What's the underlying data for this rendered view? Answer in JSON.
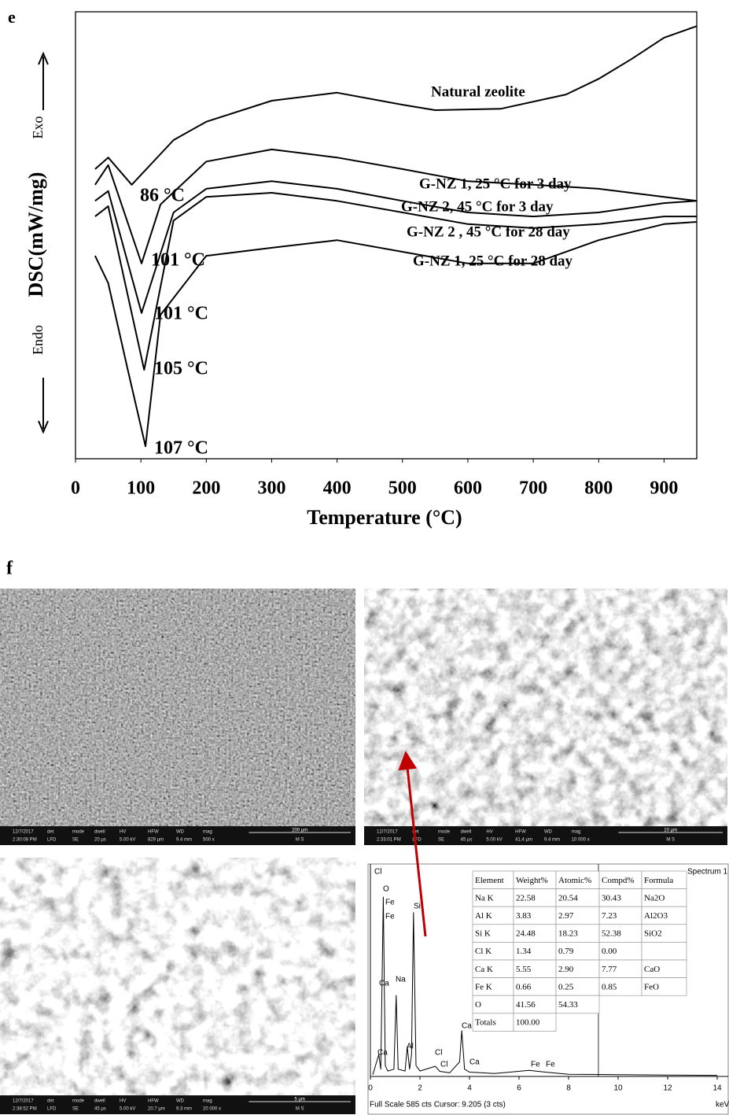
{
  "chart_data": [
    {
      "type": "line",
      "xlabel": "Temperature (°C)",
      "ylabel": "DSC(mW/mg)",
      "exo_label": "Exo",
      "endo_label": "Endo",
      "xlim": [
        0,
        950
      ],
      "ylim": [
        0,
        100
      ],
      "xticks": [
        0,
        100,
        200,
        300,
        400,
        500,
        600,
        700,
        800,
        900
      ],
      "grid": false,
      "series": [
        {
          "name": "Natural zeolite",
          "peak_label": "86 °C",
          "color": "#000000",
          "x": [
            30,
            50,
            86,
            150,
            200,
            300,
            400,
            500,
            550,
            650,
            750,
            800,
            850,
            900,
            950
          ],
          "values": [
            64.8,
            67.4,
            61.3,
            71.3,
            75.4,
            80.1,
            81.9,
            79.2,
            78,
            78.3,
            81.5,
            85,
            89.4,
            94.2,
            96.8
          ]
        },
        {
          "name": "G-NZ 1, 25 °C for 3 day",
          "peak_label": "101 °C",
          "color": "#000000",
          "x": [
            30,
            50,
            101,
            130,
            200,
            300,
            400,
            500,
            600,
            700,
            800,
            900,
            950
          ],
          "values": [
            61.3,
            65.7,
            43.7,
            56.9,
            66.5,
            69.2,
            67.4,
            64.8,
            62.1,
            61.3,
            60.4,
            58.6,
            57.7
          ]
        },
        {
          "name": "G-NZ 2, 45 °C for 3 day",
          "peak_label": "101 °C",
          "color": "#000000",
          "x": [
            30,
            50,
            101,
            150,
            200,
            300,
            400,
            500,
            600,
            700,
            800,
            900,
            950
          ],
          "values": [
            57.7,
            59.9,
            32.6,
            55.1,
            60.4,
            62.1,
            60.4,
            57.7,
            55.1,
            54.2,
            55.1,
            57.2,
            57.7
          ]
        },
        {
          "name": "G-NZ 2 , 45 °C for 28 day",
          "peak_label": "105 °C",
          "color": "#000000",
          "x": [
            30,
            50,
            105,
            150,
            200,
            300,
            400,
            500,
            600,
            700,
            800,
            900,
            950
          ],
          "values": [
            54.2,
            56.5,
            19.9,
            53.3,
            58.6,
            59.5,
            57.7,
            55.1,
            52.5,
            51.6,
            52.5,
            54.2,
            54.2
          ]
        },
        {
          "name": "G-NZ 1, 25 °C for 28 day",
          "peak_label": "107 °C",
          "color": "#000000",
          "x": [
            30,
            50,
            80,
            107,
            130,
            200,
            300,
            400,
            500,
            600,
            700,
            800,
            900,
            950
          ],
          "values": [
            45.4,
            39.3,
            19.9,
            2.8,
            32.2,
            45.4,
            47.2,
            48.9,
            46.3,
            43.7,
            43.7,
            48.9,
            52.5,
            53
          ]
        }
      ]
    },
    {
      "type": "line",
      "title": "Spectrum 1",
      "xlabel": "keV",
      "footer": "Full Scale 585 cts Cursor: 9.205 (3 cts)",
      "xlim": [
        0,
        14
      ],
      "ylim": [
        0,
        585
      ],
      "xticks": [
        0,
        2,
        4,
        6,
        8,
        10,
        12,
        14
      ],
      "cursor": 9.205,
      "x": [
        0.1,
        0.25,
        0.34,
        0.42,
        0.52,
        0.6,
        0.7,
        0.95,
        1.04,
        1.12,
        1.4,
        1.49,
        1.58,
        1.66,
        1.74,
        1.84,
        2.0,
        2.62,
        2.8,
        3.2,
        3.6,
        3.69,
        3.8,
        4.0,
        5,
        6.4,
        7.06,
        8,
        10,
        12,
        14
      ],
      "series": [
        {
          "color": "#000000",
          "values": [
            5,
            40,
            60,
            20,
            494,
            30,
            15,
            20,
            223,
            20,
            15,
            82,
            20,
            60,
            451,
            30,
            15,
            28,
            14,
            10,
            40,
            126,
            20,
            12,
            8,
            17,
            12,
            6,
            5,
            4,
            3
          ]
        }
      ],
      "peak_labels": [
        "Cl",
        "O",
        "Fe",
        "Fe",
        "Si",
        "Na",
        "Ca",
        "Al",
        "Ca",
        "Cl",
        "Cl",
        "Ca",
        "Ca",
        "Fe",
        "Fe"
      ]
    }
  ],
  "panels": [
    "e",
    "f"
  ],
  "eds_table": {
    "header": [
      "Element",
      "Weight%",
      "Atomic%",
      "Compd%",
      "Formula"
    ],
    "rows": [
      [
        "Na K",
        "22.58",
        "20.54",
        "30.43",
        "Na2O"
      ],
      [
        "Al K",
        "3.83",
        "2.97",
        "7.23",
        "Al2O3"
      ],
      [
        "Si K",
        "24.48",
        "18.23",
        "52.38",
        "SiO2"
      ],
      [
        "Cl K",
        "1.34",
        "0.79",
        "0.00",
        null
      ],
      [
        "Ca K",
        "5.55",
        "2.90",
        "7.77",
        "CaO"
      ],
      [
        "Fe K",
        "0.66",
        "0.25",
        "0.85",
        "FeO"
      ],
      [
        "O",
        "41.56",
        "54.33",
        null,
        null
      ],
      [
        "Totals",
        "100.00",
        null,
        null,
        null
      ]
    ]
  },
  "sem_header": [
    "det",
    "mode",
    "dwell",
    "HV",
    "HFW",
    "WD",
    "mag"
  ],
  "sem_images": [
    {
      "date": "12/7/2017",
      "time": "2:30:08 PM",
      "values": [
        "LFD",
        "SE",
        "20 µs",
        "5.00 kV",
        "829 µm",
        "9.4 mm",
        "500 x"
      ],
      "scale": "200 µm",
      "label": "M S"
    },
    {
      "date": "12/7/2017",
      "time": "2:33:01 PM",
      "values": [
        "LFD",
        "SE",
        "45 µs",
        "5.00 kV",
        "41.4 µm",
        "9.4 mm",
        "10 000 x"
      ],
      "scale": "10 µm",
      "label": "M S"
    },
    {
      "date": "12/7/2017",
      "time": "2:38:52 PM",
      "values": [
        "LFD",
        "SE",
        "45 µs",
        "5.00 kV",
        "20.7 µm",
        "9.3 mm",
        "20 000 x"
      ],
      "scale": "5 µm",
      "label": "M S"
    }
  ]
}
